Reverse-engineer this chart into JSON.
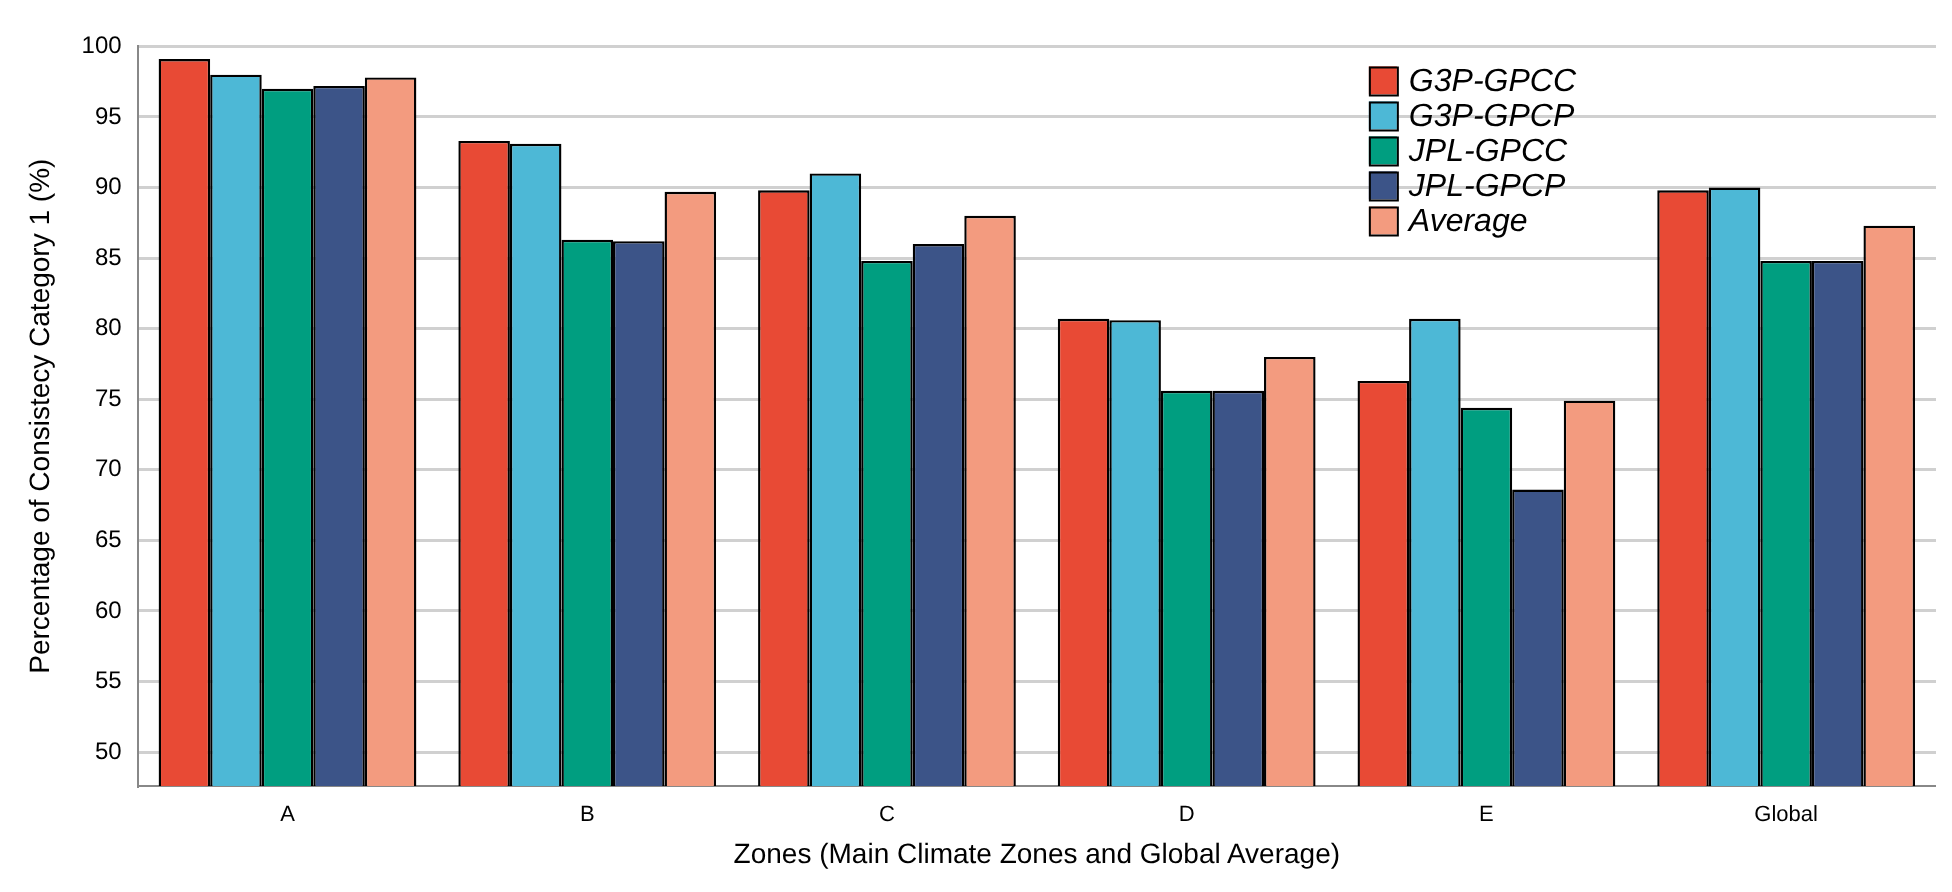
{
  "chart_data": {
    "type": "bar",
    "xlabel": "Zones (Main Climate Zones and Global Average)",
    "ylabel": "Percentage of Consistecy Category 1 (%)",
    "categories": [
      "A",
      "B",
      "C",
      "D",
      "E",
      "Global"
    ],
    "series": [
      {
        "name": "G3P-GPCC",
        "color": "#e84a35",
        "values": [
          99.1,
          93.3,
          89.8,
          80.7,
          76.3,
          89.8
        ]
      },
      {
        "name": "G3P-GPCP",
        "color": "#4db8d6",
        "values": [
          98.0,
          93.1,
          91.0,
          80.6,
          80.7,
          90.0
        ]
      },
      {
        "name": "JPL-GPCC",
        "color": "#009e80",
        "values": [
          97.0,
          86.3,
          84.8,
          75.6,
          74.4,
          84.8
        ]
      },
      {
        "name": "JPL-GPCP",
        "color": "#3c5488",
        "values": [
          97.2,
          86.2,
          86.0,
          75.6,
          68.6,
          84.8
        ]
      },
      {
        "name": "Average",
        "color": "#f39b7f",
        "values": [
          97.8,
          89.7,
          88.0,
          78.0,
          74.9,
          87.3
        ]
      }
    ],
    "ylim": [
      47.6,
      100
    ],
    "yticks": [
      50,
      55,
      60,
      65,
      70,
      75,
      80,
      85,
      90,
      95,
      100
    ],
    "grid": "y",
    "legend": "top right"
  }
}
